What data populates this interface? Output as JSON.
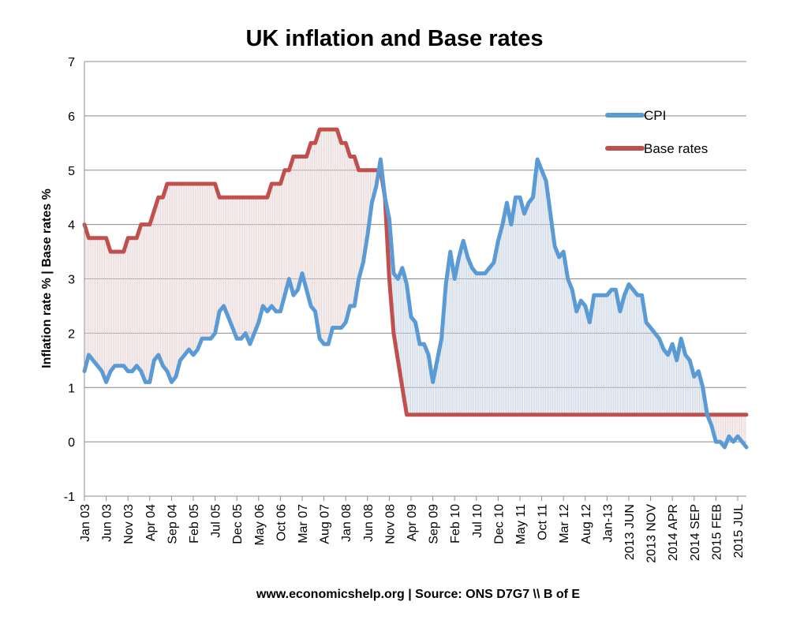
{
  "chart_data": {
    "type": "line",
    "title": "UK inflation and Base rates",
    "ylabel": "Inflation rate %  |  Base rates %",
    "xlabel": "",
    "footer": "www.economicshelp.org  |  Source: ONS D7G7 \\\\ B of E",
    "ylim": [
      -1,
      7
    ],
    "yticks": [
      -1,
      0,
      1,
      2,
      3,
      4,
      5,
      6,
      7
    ],
    "grid": "horizontal",
    "legend_position": "top-right",
    "x_start": "2003-01",
    "x_end": "2015-09",
    "x_ticks": [
      {
        "date": "2003-01",
        "label": "Jan 03"
      },
      {
        "date": "2003-06",
        "label": "Jun 03"
      },
      {
        "date": "2003-11",
        "label": "Nov 03"
      },
      {
        "date": "2004-04",
        "label": "Apr 04"
      },
      {
        "date": "2004-09",
        "label": "Sep 04"
      },
      {
        "date": "2005-02",
        "label": "Feb 05"
      },
      {
        "date": "2005-07",
        "label": "Jul 05"
      },
      {
        "date": "2005-12",
        "label": "Dec 05"
      },
      {
        "date": "2006-05",
        "label": "May 06"
      },
      {
        "date": "2006-10",
        "label": "Oct 06"
      },
      {
        "date": "2007-03",
        "label": "Mar 07"
      },
      {
        "date": "2007-08",
        "label": "Aug 07"
      },
      {
        "date": "2008-01",
        "label": "Jan 08"
      },
      {
        "date": "2008-06",
        "label": "Jun 08"
      },
      {
        "date": "2008-11",
        "label": "Nov 08"
      },
      {
        "date": "2009-04",
        "label": "Apr 09"
      },
      {
        "date": "2009-09",
        "label": "Sep 09"
      },
      {
        "date": "2010-02",
        "label": "Feb 10"
      },
      {
        "date": "2010-07",
        "label": "Jul 10"
      },
      {
        "date": "2010-12",
        "label": "Dec 10"
      },
      {
        "date": "2011-05",
        "label": "May 11"
      },
      {
        "date": "2011-10",
        "label": "Oct 11"
      },
      {
        "date": "2012-03",
        "label": "Mar 12"
      },
      {
        "date": "2012-08",
        "label": "Aug 12"
      },
      {
        "date": "2013-01",
        "label": "Jan-13"
      },
      {
        "date": "2013-06",
        "label": "2013 JUN"
      },
      {
        "date": "2013-11",
        "label": "2013 NOV"
      },
      {
        "date": "2014-04",
        "label": "2014 APR"
      },
      {
        "date": "2014-09",
        "label": "2014 SEP"
      },
      {
        "date": "2015-02",
        "label": "2015 FEB"
      },
      {
        "date": "2015-07",
        "label": "2015 JUL"
      }
    ],
    "series": [
      {
        "name": "CPI",
        "color": "#5b9bd5",
        "points": [
          [
            "2003-01",
            1.3
          ],
          [
            "2003-02",
            1.6
          ],
          [
            "2003-03",
            1.5
          ],
          [
            "2003-04",
            1.4
          ],
          [
            "2003-05",
            1.3
          ],
          [
            "2003-06",
            1.1
          ],
          [
            "2003-07",
            1.3
          ],
          [
            "2003-08",
            1.4
          ],
          [
            "2003-09",
            1.4
          ],
          [
            "2003-10",
            1.4
          ],
          [
            "2003-11",
            1.3
          ],
          [
            "2003-12",
            1.3
          ],
          [
            "2004-01",
            1.4
          ],
          [
            "2004-02",
            1.3
          ],
          [
            "2004-03",
            1.1
          ],
          [
            "2004-04",
            1.1
          ],
          [
            "2004-05",
            1.5
          ],
          [
            "2004-06",
            1.6
          ],
          [
            "2004-07",
            1.4
          ],
          [
            "2004-08",
            1.3
          ],
          [
            "2004-09",
            1.1
          ],
          [
            "2004-10",
            1.2
          ],
          [
            "2004-11",
            1.5
          ],
          [
            "2004-12",
            1.6
          ],
          [
            "2005-01",
            1.7
          ],
          [
            "2005-02",
            1.6
          ],
          [
            "2005-03",
            1.7
          ],
          [
            "2005-04",
            1.9
          ],
          [
            "2005-05",
            1.9
          ],
          [
            "2005-06",
            1.9
          ],
          [
            "2005-07",
            2.0
          ],
          [
            "2005-08",
            2.4
          ],
          [
            "2005-09",
            2.5
          ],
          [
            "2005-10",
            2.3
          ],
          [
            "2005-11",
            2.1
          ],
          [
            "2005-12",
            1.9
          ],
          [
            "2006-01",
            1.9
          ],
          [
            "2006-02",
            2.0
          ],
          [
            "2006-03",
            1.8
          ],
          [
            "2006-04",
            2.0
          ],
          [
            "2006-05",
            2.2
          ],
          [
            "2006-06",
            2.5
          ],
          [
            "2006-07",
            2.4
          ],
          [
            "2006-08",
            2.5
          ],
          [
            "2006-09",
            2.4
          ],
          [
            "2006-10",
            2.4
          ],
          [
            "2006-11",
            2.7
          ],
          [
            "2006-12",
            3.0
          ],
          [
            "2007-01",
            2.7
          ],
          [
            "2007-02",
            2.8
          ],
          [
            "2007-03",
            3.1
          ],
          [
            "2007-04",
            2.8
          ],
          [
            "2007-05",
            2.5
          ],
          [
            "2007-06",
            2.4
          ],
          [
            "2007-07",
            1.9
          ],
          [
            "2007-08",
            1.8
          ],
          [
            "2007-09",
            1.8
          ],
          [
            "2007-10",
            2.1
          ],
          [
            "2007-11",
            2.1
          ],
          [
            "2007-12",
            2.1
          ],
          [
            "2008-01",
            2.2
          ],
          [
            "2008-02",
            2.5
          ],
          [
            "2008-03",
            2.5
          ],
          [
            "2008-04",
            3.0
          ],
          [
            "2008-05",
            3.3
          ],
          [
            "2008-06",
            3.8
          ],
          [
            "2008-07",
            4.4
          ],
          [
            "2008-08",
            4.7
          ],
          [
            "2008-09",
            5.2
          ],
          [
            "2008-10",
            4.5
          ],
          [
            "2008-11",
            4.1
          ],
          [
            "2008-12",
            3.1
          ],
          [
            "2009-01",
            3.0
          ],
          [
            "2009-02",
            3.2
          ],
          [
            "2009-03",
            2.9
          ],
          [
            "2009-04",
            2.3
          ],
          [
            "2009-05",
            2.2
          ],
          [
            "2009-06",
            1.8
          ],
          [
            "2009-07",
            1.8
          ],
          [
            "2009-08",
            1.6
          ],
          [
            "2009-09",
            1.1
          ],
          [
            "2009-10",
            1.5
          ],
          [
            "2009-11",
            1.9
          ],
          [
            "2009-12",
            2.9
          ],
          [
            "2010-01",
            3.5
          ],
          [
            "2010-02",
            3.0
          ],
          [
            "2010-03",
            3.4
          ],
          [
            "2010-04",
            3.7
          ],
          [
            "2010-05",
            3.4
          ],
          [
            "2010-06",
            3.2
          ],
          [
            "2010-07",
            3.1
          ],
          [
            "2010-08",
            3.1
          ],
          [
            "2010-09",
            3.1
          ],
          [
            "2010-10",
            3.2
          ],
          [
            "2010-11",
            3.3
          ],
          [
            "2010-12",
            3.7
          ],
          [
            "2011-01",
            4.0
          ],
          [
            "2011-02",
            4.4
          ],
          [
            "2011-03",
            4.0
          ],
          [
            "2011-04",
            4.5
          ],
          [
            "2011-05",
            4.5
          ],
          [
            "2011-06",
            4.2
          ],
          [
            "2011-07",
            4.4
          ],
          [
            "2011-08",
            4.5
          ],
          [
            "2011-09",
            5.2
          ],
          [
            "2011-10",
            5.0
          ],
          [
            "2011-11",
            4.8
          ],
          [
            "2011-12",
            4.2
          ],
          [
            "2012-01",
            3.6
          ],
          [
            "2012-02",
            3.4
          ],
          [
            "2012-03",
            3.5
          ],
          [
            "2012-04",
            3.0
          ],
          [
            "2012-05",
            2.8
          ],
          [
            "2012-06",
            2.4
          ],
          [
            "2012-07",
            2.6
          ],
          [
            "2012-08",
            2.5
          ],
          [
            "2012-09",
            2.2
          ],
          [
            "2012-10",
            2.7
          ],
          [
            "2012-11",
            2.7
          ],
          [
            "2012-12",
            2.7
          ],
          [
            "2013-01",
            2.7
          ],
          [
            "2013-02",
            2.8
          ],
          [
            "2013-03",
            2.8
          ],
          [
            "2013-04",
            2.4
          ],
          [
            "2013-05",
            2.7
          ],
          [
            "2013-06",
            2.9
          ],
          [
            "2013-07",
            2.8
          ],
          [
            "2013-08",
            2.7
          ],
          [
            "2013-09",
            2.7
          ],
          [
            "2013-10",
            2.2
          ],
          [
            "2013-11",
            2.1
          ],
          [
            "2013-12",
            2.0
          ],
          [
            "2014-01",
            1.9
          ],
          [
            "2014-02",
            1.7
          ],
          [
            "2014-03",
            1.6
          ],
          [
            "2014-04",
            1.8
          ],
          [
            "2014-05",
            1.5
          ],
          [
            "2014-06",
            1.9
          ],
          [
            "2014-07",
            1.6
          ],
          [
            "2014-08",
            1.5
          ],
          [
            "2014-09",
            1.2
          ],
          [
            "2014-10",
            1.3
          ],
          [
            "2014-11",
            1.0
          ],
          [
            "2014-12",
            0.5
          ],
          [
            "2015-01",
            0.3
          ],
          [
            "2015-02",
            0.0
          ],
          [
            "2015-03",
            0.0
          ],
          [
            "2015-04",
            -0.1
          ],
          [
            "2015-05",
            0.1
          ],
          [
            "2015-06",
            0.0
          ],
          [
            "2015-07",
            0.1
          ],
          [
            "2015-08",
            0.0
          ],
          [
            "2015-09",
            -0.1
          ]
        ]
      },
      {
        "name": "Base rates",
        "color": "#c0504d",
        "points": [
          [
            "2003-01",
            4.0
          ],
          [
            "2003-02",
            3.75
          ],
          [
            "2003-03",
            3.75
          ],
          [
            "2003-04",
            3.75
          ],
          [
            "2003-05",
            3.75
          ],
          [
            "2003-06",
            3.75
          ],
          [
            "2003-07",
            3.5
          ],
          [
            "2003-08",
            3.5
          ],
          [
            "2003-09",
            3.5
          ],
          [
            "2003-10",
            3.5
          ],
          [
            "2003-11",
            3.75
          ],
          [
            "2003-12",
            3.75
          ],
          [
            "2004-01",
            3.75
          ],
          [
            "2004-02",
            4.0
          ],
          [
            "2004-03",
            4.0
          ],
          [
            "2004-04",
            4.0
          ],
          [
            "2004-05",
            4.25
          ],
          [
            "2004-06",
            4.5
          ],
          [
            "2004-07",
            4.5
          ],
          [
            "2004-08",
            4.75
          ],
          [
            "2004-09",
            4.75
          ],
          [
            "2004-10",
            4.75
          ],
          [
            "2004-11",
            4.75
          ],
          [
            "2004-12",
            4.75
          ],
          [
            "2005-01",
            4.75
          ],
          [
            "2005-02",
            4.75
          ],
          [
            "2005-03",
            4.75
          ],
          [
            "2005-04",
            4.75
          ],
          [
            "2005-05",
            4.75
          ],
          [
            "2005-06",
            4.75
          ],
          [
            "2005-07",
            4.75
          ],
          [
            "2005-08",
            4.5
          ],
          [
            "2005-09",
            4.5
          ],
          [
            "2005-10",
            4.5
          ],
          [
            "2005-11",
            4.5
          ],
          [
            "2005-12",
            4.5
          ],
          [
            "2006-01",
            4.5
          ],
          [
            "2006-02",
            4.5
          ],
          [
            "2006-03",
            4.5
          ],
          [
            "2006-04",
            4.5
          ],
          [
            "2006-05",
            4.5
          ],
          [
            "2006-06",
            4.5
          ],
          [
            "2006-07",
            4.5
          ],
          [
            "2006-08",
            4.75
          ],
          [
            "2006-09",
            4.75
          ],
          [
            "2006-10",
            4.75
          ],
          [
            "2006-11",
            5.0
          ],
          [
            "2006-12",
            5.0
          ],
          [
            "2007-01",
            5.25
          ],
          [
            "2007-02",
            5.25
          ],
          [
            "2007-03",
            5.25
          ],
          [
            "2007-04",
            5.25
          ],
          [
            "2007-05",
            5.5
          ],
          [
            "2007-06",
            5.5
          ],
          [
            "2007-07",
            5.75
          ],
          [
            "2007-08",
            5.75
          ],
          [
            "2007-09",
            5.75
          ],
          [
            "2007-10",
            5.75
          ],
          [
            "2007-11",
            5.75
          ],
          [
            "2007-12",
            5.5
          ],
          [
            "2008-01",
            5.5
          ],
          [
            "2008-02",
            5.25
          ],
          [
            "2008-03",
            5.25
          ],
          [
            "2008-04",
            5.0
          ],
          [
            "2008-05",
            5.0
          ],
          [
            "2008-06",
            5.0
          ],
          [
            "2008-07",
            5.0
          ],
          [
            "2008-08",
            5.0
          ],
          [
            "2008-09",
            5.0
          ],
          [
            "2008-10",
            4.5
          ],
          [
            "2008-11",
            3.0
          ],
          [
            "2008-12",
            2.0
          ],
          [
            "2009-01",
            1.5
          ],
          [
            "2009-02",
            1.0
          ],
          [
            "2009-03",
            0.5
          ],
          [
            "2015-09",
            0.5
          ]
        ]
      }
    ]
  }
}
